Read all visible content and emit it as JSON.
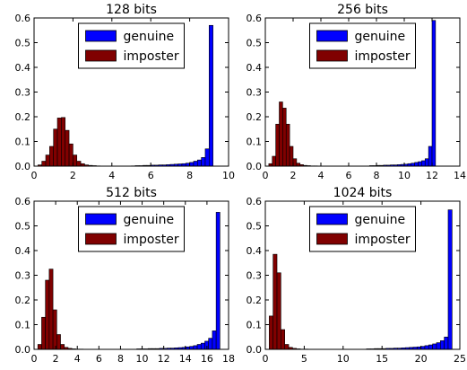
{
  "chart_data": [
    {
      "type": "bar",
      "title": "128 bits",
      "xlim": [
        0,
        10
      ],
      "ylim": [
        0,
        0.6
      ],
      "xticks": [
        0,
        2,
        4,
        6,
        8,
        10
      ],
      "yticks": [
        0.0,
        0.1,
        0.2,
        0.3,
        0.4,
        0.5,
        0.6
      ],
      "xticklabels": [
        "0",
        "2",
        "4",
        "6",
        "8",
        "10"
      ],
      "yticklabels": [
        "0.0",
        "0.1",
        "0.2",
        "0.3",
        "0.4",
        "0.5",
        "0.6"
      ],
      "legend": {
        "position": "top-center",
        "entries": [
          "genuine",
          "imposter"
        ]
      },
      "series": [
        {
          "name": "genuine",
          "color": "#0000ff",
          "bin_width": 0.2,
          "x": [
            5.0,
            5.2,
            5.4,
            5.6,
            5.8,
            6.0,
            6.2,
            6.4,
            6.6,
            6.8,
            7.0,
            7.2,
            7.4,
            7.6,
            7.8,
            8.0,
            8.2,
            8.4,
            8.6,
            8.8,
            9.0
          ],
          "values": [
            0.001,
            0.002,
            0.002,
            0.003,
            0.003,
            0.004,
            0.004,
            0.005,
            0.005,
            0.006,
            0.007,
            0.008,
            0.009,
            0.01,
            0.012,
            0.015,
            0.02,
            0.025,
            0.035,
            0.07,
            0.57
          ]
        },
        {
          "name": "imposter",
          "color": "#800000",
          "bin_width": 0.2,
          "x": [
            0.2,
            0.4,
            0.6,
            0.8,
            1.0,
            1.2,
            1.4,
            1.6,
            1.8,
            2.0,
            2.2,
            2.4,
            2.6,
            2.8,
            3.0,
            3.2
          ],
          "values": [
            0.005,
            0.02,
            0.045,
            0.08,
            0.15,
            0.195,
            0.197,
            0.145,
            0.09,
            0.045,
            0.02,
            0.01,
            0.005,
            0.003,
            0.002,
            0.001
          ]
        }
      ]
    },
    {
      "type": "bar",
      "title": "256 bits",
      "xlim": [
        0,
        14
      ],
      "ylim": [
        0,
        0.6
      ],
      "xticks": [
        0,
        2,
        4,
        6,
        8,
        10,
        12,
        14
      ],
      "yticks": [
        0.0,
        0.1,
        0.2,
        0.3,
        0.4,
        0.5,
        0.6
      ],
      "xticklabels": [
        "0",
        "2",
        "4",
        "6",
        "8",
        "10",
        "12",
        "14"
      ],
      "yticklabels": [
        "0.0",
        "0.1",
        "0.2",
        "0.3",
        "0.4",
        "0.5",
        "0.6"
      ],
      "legend": {
        "position": "top-center",
        "entries": [
          "genuine",
          "imposter"
        ]
      },
      "series": [
        {
          "name": "genuine",
          "color": "#0000ff",
          "bin_width": 0.25,
          "x": [
            7.5,
            7.75,
            8.0,
            8.25,
            8.5,
            8.75,
            9.0,
            9.25,
            9.5,
            9.75,
            10.0,
            10.25,
            10.5,
            10.75,
            11.0,
            11.25,
            11.5,
            11.75,
            12.0
          ],
          "values": [
            0.002,
            0.002,
            0.003,
            0.003,
            0.004,
            0.004,
            0.005,
            0.005,
            0.006,
            0.007,
            0.008,
            0.01,
            0.012,
            0.015,
            0.018,
            0.022,
            0.03,
            0.08,
            0.59
          ]
        },
        {
          "name": "imposter",
          "color": "#800000",
          "bin_width": 0.25,
          "x": [
            0.25,
            0.5,
            0.75,
            1.0,
            1.25,
            1.5,
            1.75,
            2.0,
            2.25,
            2.5,
            2.75,
            3.0,
            3.25,
            3.5
          ],
          "values": [
            0.01,
            0.04,
            0.17,
            0.26,
            0.235,
            0.17,
            0.08,
            0.03,
            0.012,
            0.006,
            0.003,
            0.002,
            0.001,
            0.001
          ]
        }
      ]
    },
    {
      "type": "bar",
      "title": "512 bits",
      "xlim": [
        0,
        18
      ],
      "ylim": [
        0,
        0.6
      ],
      "xticks": [
        0,
        2,
        4,
        6,
        8,
        10,
        12,
        14,
        16,
        18
      ],
      "yticks": [
        0.0,
        0.1,
        0.2,
        0.3,
        0.4,
        0.5,
        0.6
      ],
      "xticklabels": [
        "0",
        "2",
        "4",
        "6",
        "8",
        "10",
        "12",
        "14",
        "16",
        "18"
      ],
      "yticklabels": [
        "0.0",
        "0.1",
        "0.2",
        "0.3",
        "0.4",
        "0.5",
        "0.6"
      ],
      "legend": {
        "position": "top-center",
        "entries": [
          "genuine",
          "imposter"
        ]
      },
      "series": [
        {
          "name": "genuine",
          "color": "#0000ff",
          "bin_width": 0.35,
          "x": [
            9.5,
            9.85,
            10.2,
            10.55,
            10.9,
            11.25,
            11.6,
            11.95,
            12.3,
            12.65,
            13.0,
            13.35,
            13.7,
            14.05,
            14.4,
            14.75,
            15.1,
            15.45,
            15.8,
            16.15,
            16.5,
            16.85
          ],
          "values": [
            0.002,
            0.002,
            0.002,
            0.003,
            0.003,
            0.003,
            0.004,
            0.004,
            0.005,
            0.005,
            0.006,
            0.007,
            0.008,
            0.01,
            0.012,
            0.015,
            0.02,
            0.025,
            0.033,
            0.045,
            0.075,
            0.555
          ]
        },
        {
          "name": "imposter",
          "color": "#800000",
          "bin_width": 0.35,
          "x": [
            0.35,
            0.7,
            1.05,
            1.4,
            1.75,
            2.1,
            2.45,
            2.8,
            3.15,
            3.5,
            3.85,
            4.2
          ],
          "values": [
            0.02,
            0.13,
            0.28,
            0.325,
            0.16,
            0.06,
            0.02,
            0.008,
            0.004,
            0.002,
            0.001,
            0.001
          ]
        }
      ]
    },
    {
      "type": "bar",
      "title": "1024 bits",
      "xlim": [
        0,
        25
      ],
      "ylim": [
        0,
        0.6
      ],
      "xticks": [
        0,
        5,
        10,
        15,
        20,
        25
      ],
      "yticks": [
        0.0,
        0.1,
        0.2,
        0.3,
        0.4,
        0.5,
        0.6
      ],
      "xticklabels": [
        "0",
        "5",
        "10",
        "15",
        "20",
        "25"
      ],
      "yticklabels": [
        "0.0",
        "0.1",
        "0.2",
        "0.3",
        "0.4",
        "0.5",
        "0.6"
      ],
      "legend": {
        "position": "top-center",
        "entries": [
          "genuine",
          "imposter"
        ]
      },
      "series": [
        {
          "name": "genuine",
          "color": "#0000ff",
          "bin_width": 0.5,
          "x": [
            13.0,
            13.5,
            14.0,
            14.5,
            15.0,
            15.5,
            16.0,
            16.5,
            17.0,
            17.5,
            18.0,
            18.5,
            19.0,
            19.5,
            20.0,
            20.5,
            21.0,
            21.5,
            22.0,
            22.5,
            23.0,
            23.5
          ],
          "values": [
            0.002,
            0.002,
            0.003,
            0.003,
            0.003,
            0.004,
            0.004,
            0.005,
            0.005,
            0.006,
            0.007,
            0.008,
            0.009,
            0.01,
            0.012,
            0.015,
            0.018,
            0.022,
            0.027,
            0.035,
            0.05,
            0.565
          ]
        },
        {
          "name": "imposter",
          "color": "#800000",
          "bin_width": 0.5,
          "x": [
            0.5,
            1.0,
            1.5,
            2.0,
            2.5,
            3.0,
            3.5,
            4.0,
            4.5,
            5.0
          ],
          "values": [
            0.135,
            0.385,
            0.31,
            0.08,
            0.02,
            0.008,
            0.004,
            0.002,
            0.001,
            0.001
          ]
        }
      ]
    }
  ]
}
